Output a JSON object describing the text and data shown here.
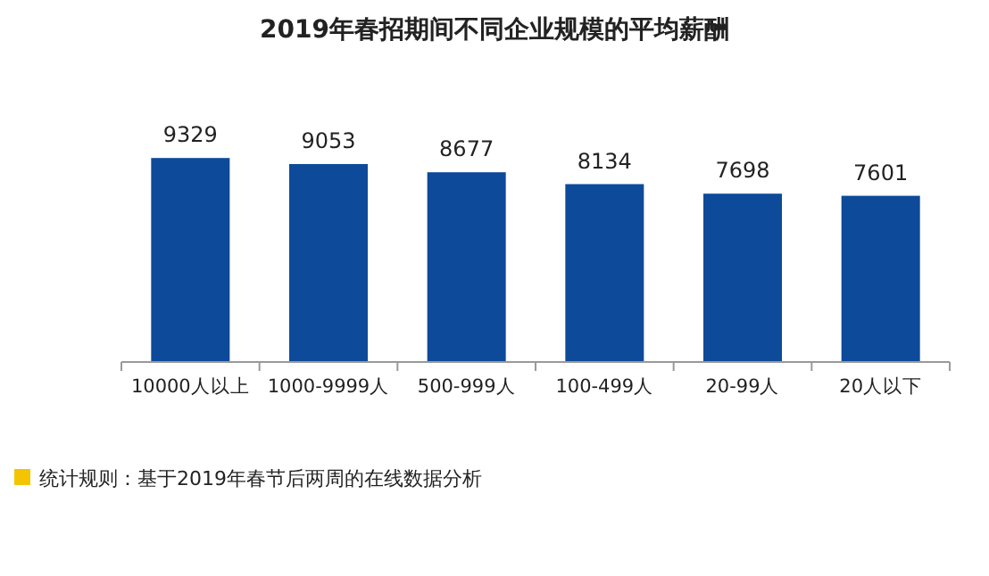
{
  "chart_data": {
    "type": "bar",
    "title": "2019年春招期间不同企业规模的平均薪酬",
    "categories": [
      "10000人以上",
      "1000-9999人",
      "500-999人",
      "100-499人",
      "20-99人",
      "20人以下"
    ],
    "values": [
      9329,
      9053,
      8677,
      8134,
      7698,
      7601
    ],
    "color": "#0d4a9a",
    "data_labels": true,
    "grid": false,
    "annotations": [
      "统计规则：基于2019年春节后两周的在线数据分析"
    ]
  }
}
